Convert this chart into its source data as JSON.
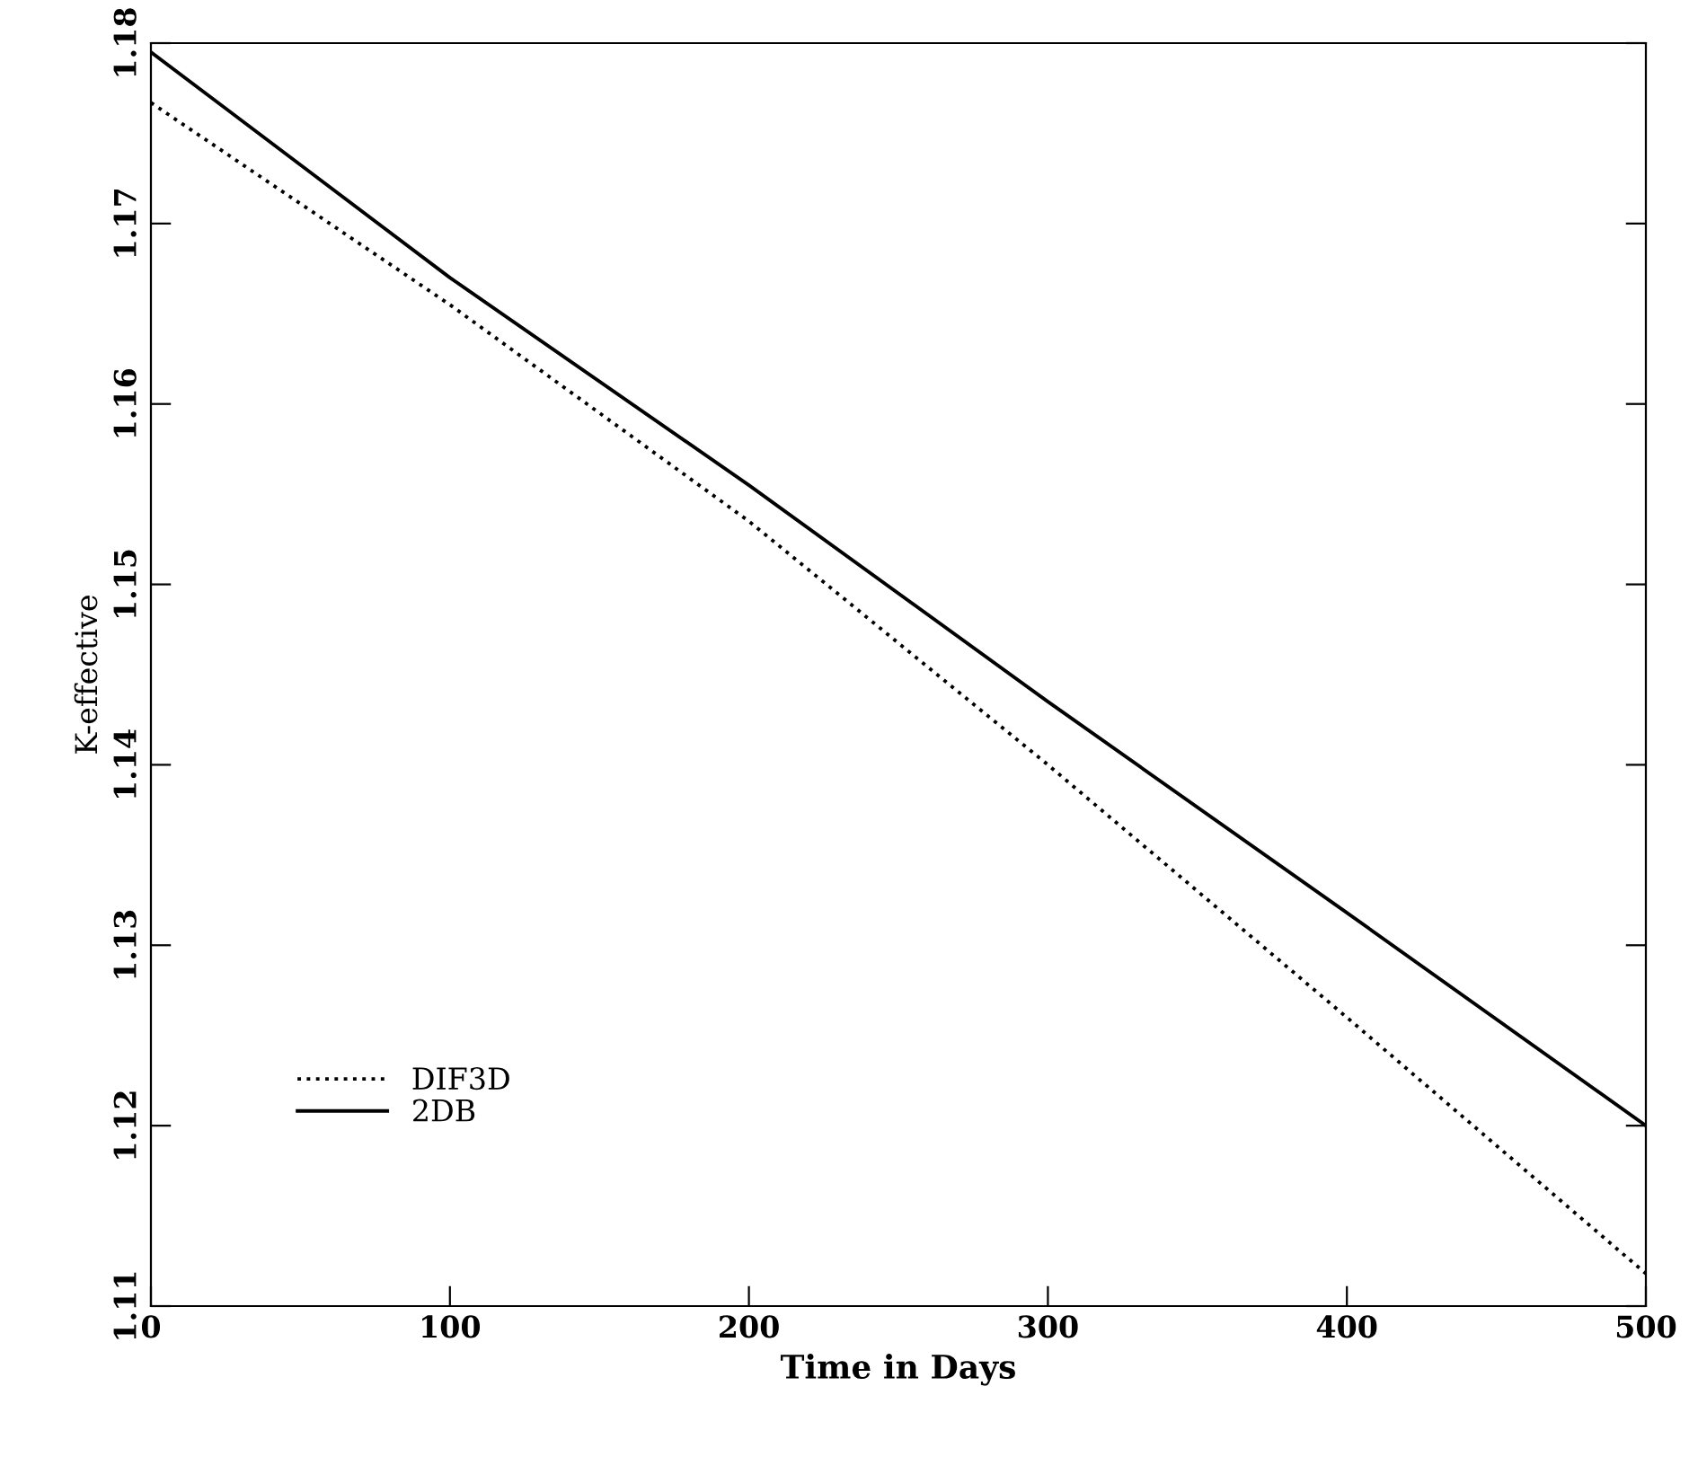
{
  "chart_data": {
    "type": "line",
    "xlabel": "Time in Days",
    "ylabel": "K-effective",
    "xlim": [
      0,
      500
    ],
    "xticks": [
      0,
      100,
      200,
      300,
      400,
      500
    ],
    "ylim": [
      1.11,
      1.18
    ],
    "yticks": [
      1.11,
      1.12,
      1.13,
      1.14,
      1.15,
      1.16,
      1.17,
      1.18
    ],
    "grid": false,
    "legend": "bottom left",
    "series": [
      {
        "name": "DIF3D",
        "color": "#000000",
        "line_style": "dotted",
        "x": [
          0,
          100,
          200,
          300,
          400,
          500
        ],
        "values": [
          1.1767,
          1.1655,
          1.1535,
          1.14,
          1.126,
          1.1118
        ]
      },
      {
        "name": "2DB",
        "color": "#000000",
        "line_style": "solid",
        "x": [
          0,
          100,
          200,
          300,
          400,
          500
        ],
        "values": [
          1.1795,
          1.167,
          1.1555,
          1.1435,
          1.1318,
          1.12
        ]
      }
    ]
  }
}
